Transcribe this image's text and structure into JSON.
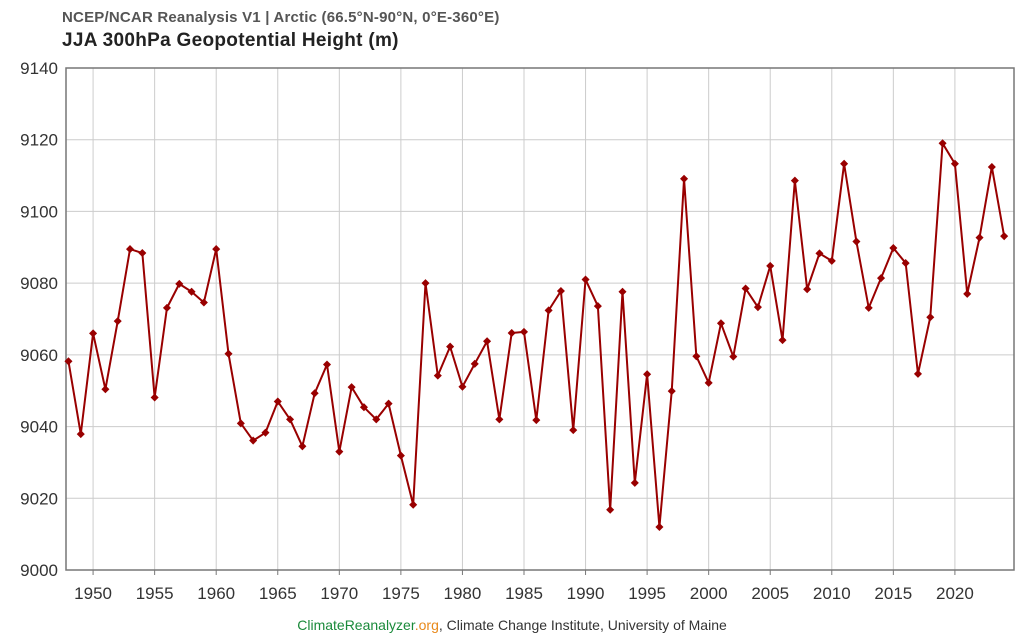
{
  "header": {
    "subtitle": "NCEP/NCAR Reanalysis V1 | Arctic (66.5°N-90°N, 0°E-360°E)",
    "title": "JJA 300hPa Geopotential Height (m)"
  },
  "footer": {
    "brand_part1": "ClimateReanalyzer",
    "brand_part2": ".org",
    "rest": ", Climate Change Institute, University of Maine"
  },
  "colors": {
    "series": "#990000",
    "grid": "#cccccc",
    "axis": "#777777",
    "brand_green": "#1a8a3a",
    "brand_orange": "#e8891a"
  },
  "chart_data": {
    "type": "line",
    "title": "JJA 300hPa Geopotential Height (m)",
    "subtitle": "NCEP/NCAR Reanalysis V1 | Arctic (66.5°N-90°N, 0°E-360°E)",
    "xlabel": "",
    "ylabel": "",
    "xlim": [
      1947.8,
      2024.8
    ],
    "ylim": [
      9000,
      9140
    ],
    "yticks": [
      9000,
      9020,
      9040,
      9060,
      9080,
      9100,
      9120,
      9140
    ],
    "xticks": [
      1950,
      1955,
      1960,
      1965,
      1970,
      1975,
      1980,
      1985,
      1990,
      1995,
      2000,
      2005,
      2010,
      2015,
      2020
    ],
    "grid": true,
    "marker": "diamond",
    "series": [
      {
        "name": "JJA 300hPa Geopotential Height",
        "x": [
          1948,
          1949,
          1950,
          1951,
          1952,
          1953,
          1954,
          1955,
          1956,
          1957,
          1958,
          1959,
          1960,
          1961,
          1962,
          1963,
          1964,
          1965,
          1966,
          1967,
          1968,
          1969,
          1970,
          1971,
          1972,
          1973,
          1974,
          1975,
          1976,
          1977,
          1978,
          1979,
          1980,
          1981,
          1982,
          1983,
          1984,
          1985,
          1986,
          1987,
          1988,
          1989,
          1990,
          1991,
          1992,
          1993,
          1994,
          1995,
          1996,
          1997,
          1998,
          1999,
          2000,
          2001,
          2002,
          2003,
          2004,
          2005,
          2006,
          2007,
          2008,
          2009,
          2010,
          2011,
          2012,
          2013,
          2014,
          2015,
          2016,
          2017,
          2018,
          2019,
          2020,
          2021,
          2022,
          2023,
          2024
        ],
        "values": [
          9058.2,
          9037.9,
          9066,
          9050.4,
          9069.4,
          9089.5,
          9088.4,
          9048.1,
          9073.1,
          9079.8,
          9077.6,
          9074.6,
          9089.5,
          9060.3,
          9040.9,
          9036.1,
          9038.3,
          9047,
          9042,
          9034.5,
          9049.3,
          9057.3,
          9033,
          9051,
          9045.4,
          9042,
          9046.4,
          9031.9,
          9018.2,
          9080,
          9054.2,
          9062.3,
          9051.1,
          9057.5,
          9063.8,
          9042,
          9066.1,
          9066.4,
          9041.8,
          9072.4,
          9077.8,
          9039,
          9081,
          9073.6,
          9016.8,
          9077.6,
          9024.3,
          9054.6,
          9012,
          9049.9,
          9109.1,
          9059.6,
          9052.2,
          9068.8,
          9059.5,
          9078.5,
          9073.3,
          9084.8,
          9064.1,
          9108.6,
          9078.3,
          9088.3,
          9086.2,
          9113.3,
          9091.6,
          9073.1,
          9081.4,
          9089.8,
          9085.6,
          9054.7,
          9070.5,
          9119,
          9113.3,
          9077,
          9092.7,
          9112.4,
          9093.1
        ]
      }
    ]
  }
}
